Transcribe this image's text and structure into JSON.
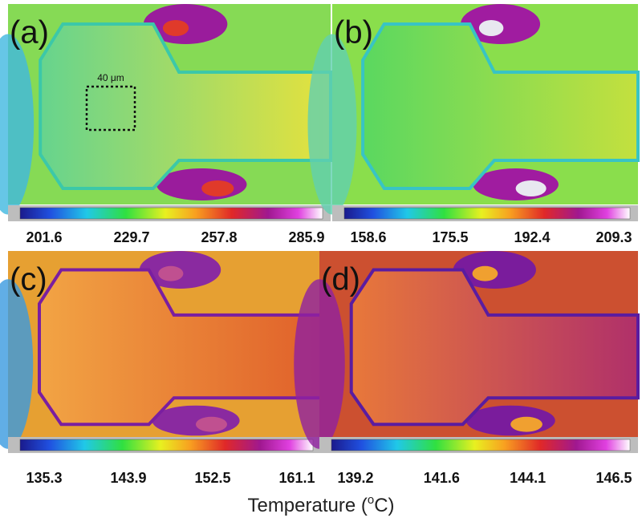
{
  "panels": [
    {
      "label": "(a)",
      "scale_bar": "40 μm",
      "colorbar_ticks": [
        201.6,
        229.7,
        257.8,
        285.9
      ]
    },
    {
      "label": "(b)",
      "colorbar_ticks": [
        158.6,
        175.5,
        192.4,
        209.3
      ]
    },
    {
      "label": "(c)",
      "colorbar_ticks": [
        135.3,
        143.9,
        152.5,
        161.1
      ]
    },
    {
      "label": "(d)",
      "colorbar_ticks": [
        139.2,
        141.6,
        144.1,
        146.5
      ]
    }
  ],
  "axis_label": {
    "prefix": "Temperature (",
    "sup": "o",
    "suffix": "C)"
  }
}
